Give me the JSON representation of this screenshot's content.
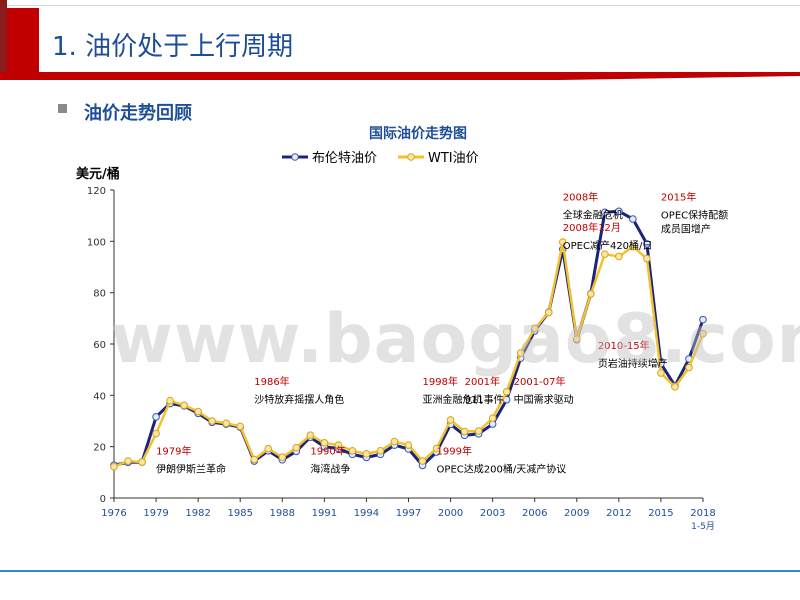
{
  "slide": {
    "title": "1. 油价处于上行周期",
    "subtitle": "油价走势回顾",
    "watermark": "www.baogao8.com",
    "accent_red": "#c00000",
    "accent_blue": "#1f4e99"
  },
  "chart_data": {
    "type": "line",
    "title": "国际油价走势图",
    "ylabel": "美元/桶",
    "ylim": [
      0,
      120
    ],
    "yticks": [
      0,
      20,
      40,
      60,
      80,
      100,
      120
    ],
    "x_range": [
      1976,
      2018
    ],
    "xticks": [
      "1976",
      "1979",
      "1982",
      "1985",
      "1988",
      "1991",
      "1994",
      "1997",
      "2000",
      "2003",
      "2006",
      "2009",
      "2012",
      "2015",
      "2018"
    ],
    "xtick_sub": "1-5月",
    "legend_position": "top",
    "x": [
      1976,
      1977,
      1978,
      1979,
      1980,
      1981,
      1982,
      1983,
      1984,
      1985,
      1986,
      1987,
      1988,
      1989,
      1990,
      1991,
      1992,
      1993,
      1994,
      1995,
      1996,
      1997,
      1998,
      1999,
      2000,
      2001,
      2002,
      2003,
      2004,
      2005,
      2006,
      2007,
      2008,
      2009,
      2010,
      2011,
      2012,
      2013,
      2014,
      2015,
      2016,
      2017,
      2018
    ],
    "series": [
      {
        "name": "布伦特油价",
        "color": "#1a237e",
        "values": [
          12.8,
          13.9,
          14.0,
          31.6,
          36.8,
          35.9,
          33.0,
          29.5,
          28.8,
          27.6,
          14.4,
          18.4,
          14.9,
          18.2,
          23.7,
          20.0,
          19.3,
          17.0,
          15.8,
          17.0,
          20.6,
          19.1,
          12.7,
          17.9,
          28.7,
          24.4,
          25.0,
          28.8,
          38.3,
          54.5,
          65.1,
          72.4,
          96.9,
          61.7,
          79.6,
          111.3,
          111.7,
          108.7,
          99.0,
          52.4,
          43.7,
          54.2,
          69.5
        ]
      },
      {
        "name": "WTI油价",
        "color": "#f2c12e",
        "values": [
          12.2,
          14.4,
          14.0,
          25.1,
          37.9,
          36.1,
          33.7,
          30.0,
          29.1,
          27.9,
          15.0,
          19.2,
          15.9,
          19.6,
          24.5,
          21.5,
          20.6,
          18.4,
          17.2,
          18.4,
          22.0,
          20.6,
          14.4,
          19.3,
          30.4,
          25.9,
          26.1,
          31.1,
          41.4,
          56.5,
          66.0,
          72.3,
          99.7,
          61.9,
          79.5,
          95.0,
          94.1,
          97.9,
          93.3,
          48.7,
          43.3,
          50.8,
          64.0
        ]
      }
    ],
    "annotations": [
      {
        "year": "1979年",
        "text": "伊朗伊斯兰革命",
        "x": 1979,
        "y": 17
      },
      {
        "year": "1986年",
        "text": "沙特放弃摇摆人角色",
        "x": 1986,
        "y": 44
      },
      {
        "year": "1990年",
        "text": "海湾战争",
        "x": 1990,
        "y": 17
      },
      {
        "year": "1998年",
        "text": "亚洲金融危机",
        "x": 1998,
        "y": 44
      },
      {
        "year": "1999年",
        "text": "OPEC达成200桶/天减产协议",
        "x": 1999,
        "y": 17
      },
      {
        "year": "2001年",
        "text": "911事件",
        "x": 2001,
        "y": 44
      },
      {
        "year": "2001-07年",
        "text": "中国需求驱动",
        "x": 2004.5,
        "y": 44
      },
      {
        "year": "2008年",
        "text": "全球金融危机",
        "x": 2008,
        "y": 116
      },
      {
        "year": "2008年12月",
        "text": "OPEC减产420桶/日",
        "x": 2008,
        "y": 104
      },
      {
        "year": "2010-15年",
        "text": "页岩油持续增产",
        "x": 2010.5,
        "y": 58
      },
      {
        "year": "2015年",
        "text": "OPEC保持配额",
        "text2": "成员国增产",
        "x": 2015,
        "y": 116
      }
    ],
    "grid": false
  }
}
